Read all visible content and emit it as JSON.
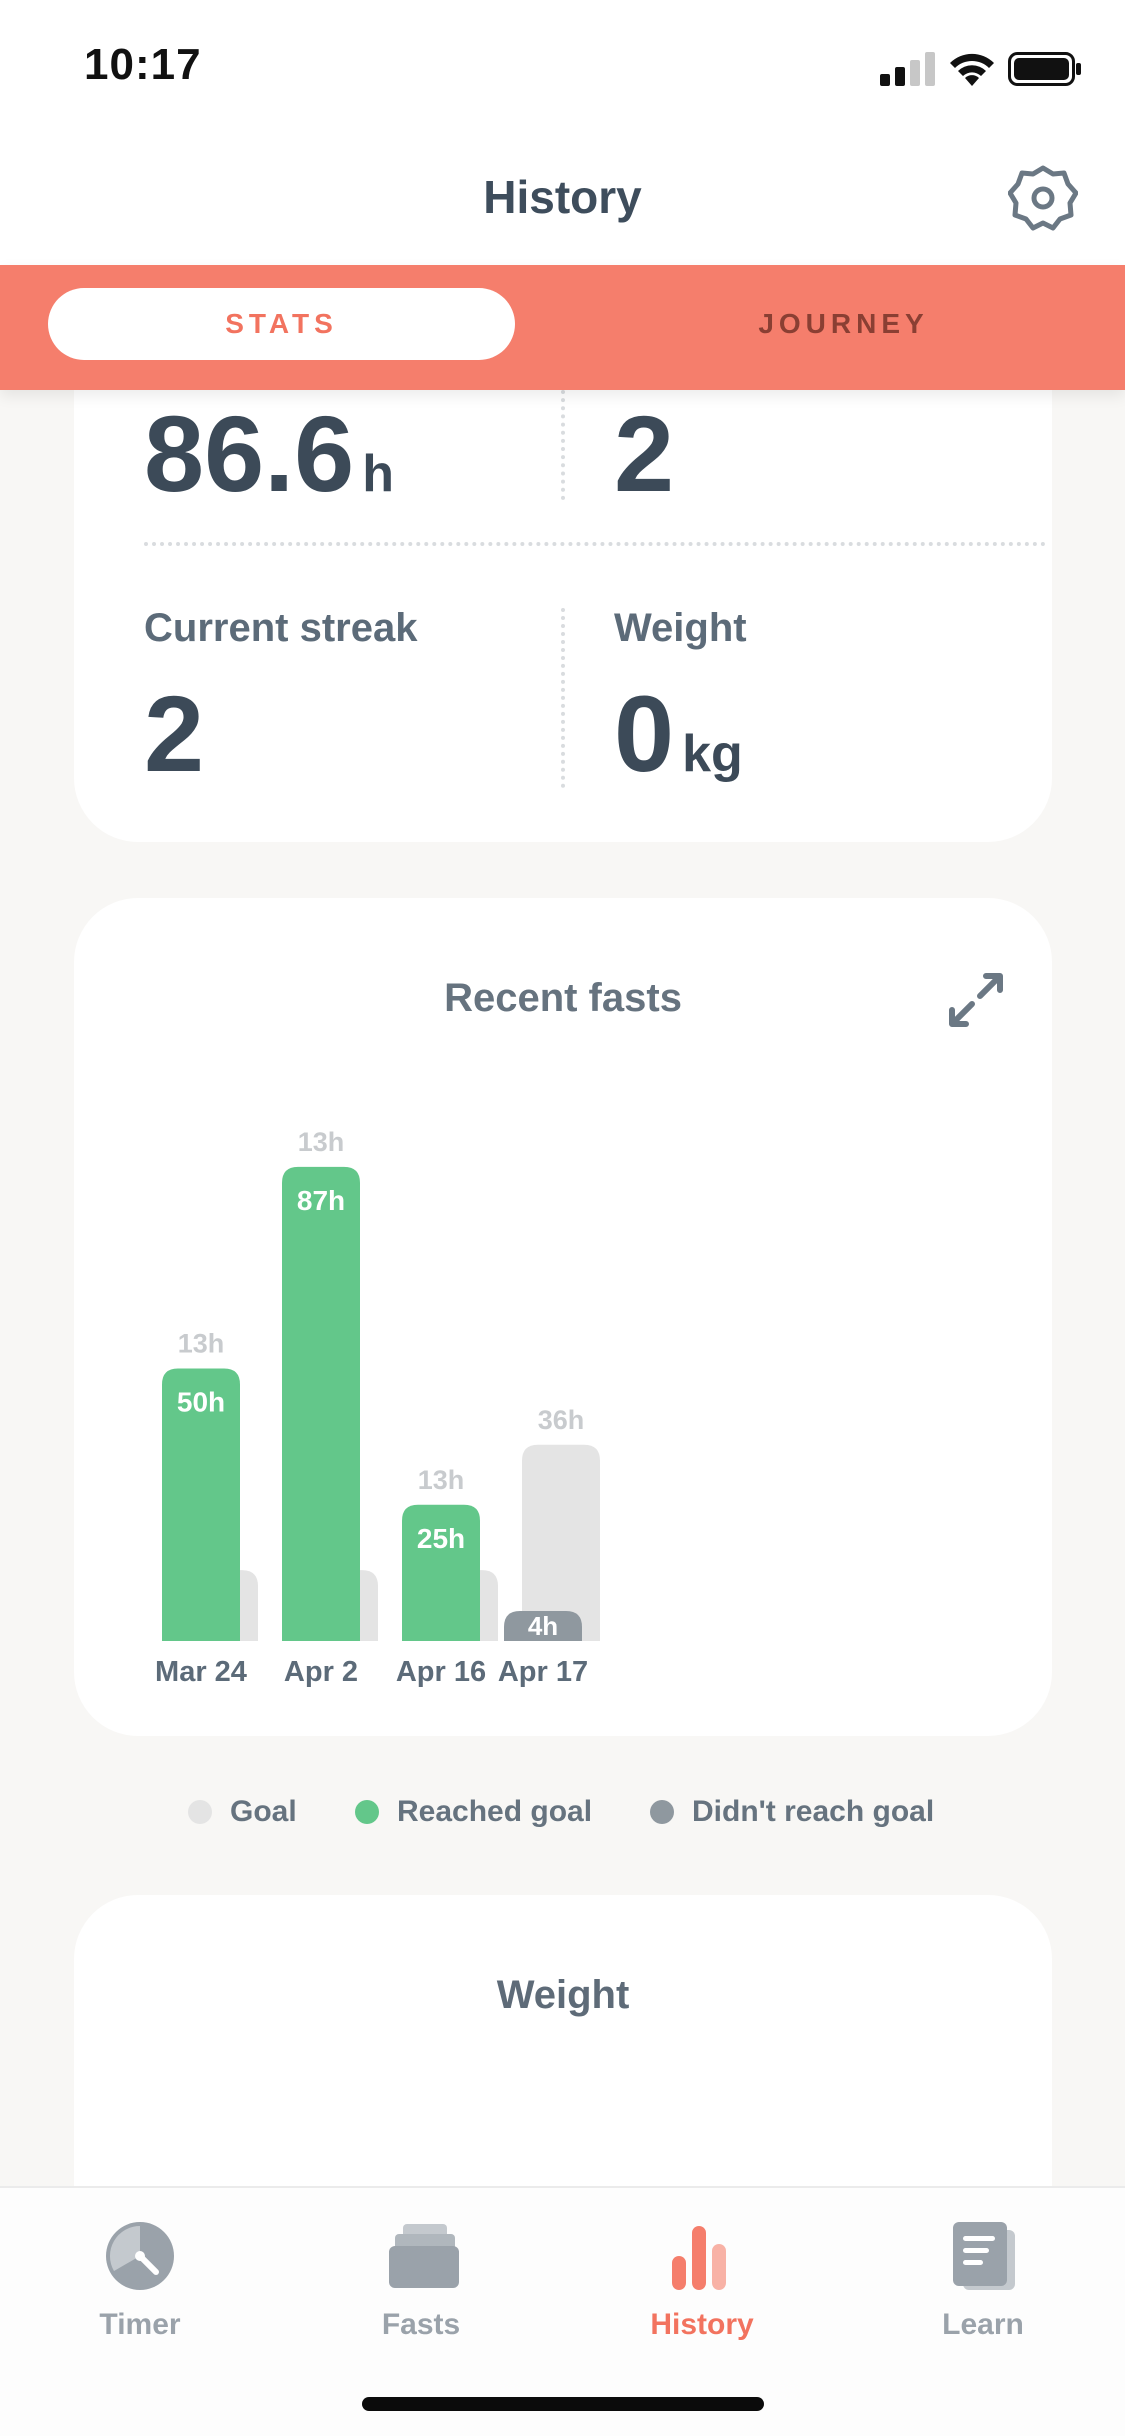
{
  "status_bar": {
    "time": "10:17"
  },
  "header": {
    "title": "History",
    "settings_icon": "gear-icon"
  },
  "segments": {
    "stats": "STATS",
    "journey": "JOURNEY",
    "active": "stats"
  },
  "stats": {
    "total_hours": {
      "value": "86.6",
      "unit": "h"
    },
    "total_fasts": {
      "value": "2"
    },
    "current_streak": {
      "label": "Current streak",
      "value": "2"
    },
    "weight": {
      "label": "Weight",
      "value": "0",
      "unit": "kg"
    }
  },
  "recent_fasts": {
    "title": "Recent fasts",
    "expand_icon": "expand-icon"
  },
  "chart_data": {
    "type": "bar",
    "title": "Recent fasts",
    "categories": [
      "Mar 24",
      "Apr 2",
      "Apr 16",
      "Apr 17"
    ],
    "series": [
      {
        "name": "Goal",
        "values": [
          13,
          13,
          13,
          36
        ],
        "labels": [
          "13h",
          "13h",
          "13h",
          "36h"
        ]
      },
      {
        "name": "Reached goal",
        "values": [
          50,
          87,
          25,
          null
        ],
        "labels": [
          "50h",
          "87h",
          "25h",
          ""
        ]
      },
      {
        "name": "Didn't reach goal",
        "values": [
          null,
          null,
          null,
          4
        ],
        "labels": [
          "",
          "",
          "",
          "4h"
        ]
      }
    ],
    "colors": {
      "goal": "#e4e4e4",
      "reached": "#63c78a",
      "missed": "#8f989f"
    },
    "legend_position": "bottom"
  },
  "legend": [
    {
      "label": "Goal",
      "color": "#e4e4e4"
    },
    {
      "label": "Reached goal",
      "color": "#63c78a"
    },
    {
      "label": "Didn't reach goal",
      "color": "#8f989f"
    }
  ],
  "weight_card": {
    "title": "Weight"
  },
  "tabs": [
    {
      "label": "Timer",
      "icon": "timer-icon",
      "active": false
    },
    {
      "label": "Fasts",
      "icon": "fasts-stack-icon",
      "active": false
    },
    {
      "label": "History",
      "icon": "history-bars-icon",
      "active": true
    },
    {
      "label": "Learn",
      "icon": "learn-book-icon",
      "active": false
    }
  ],
  "colors": {
    "accent": "#f57e6c",
    "accent_text": "#f2735f",
    "text_dark": "#3c4a58"
  }
}
